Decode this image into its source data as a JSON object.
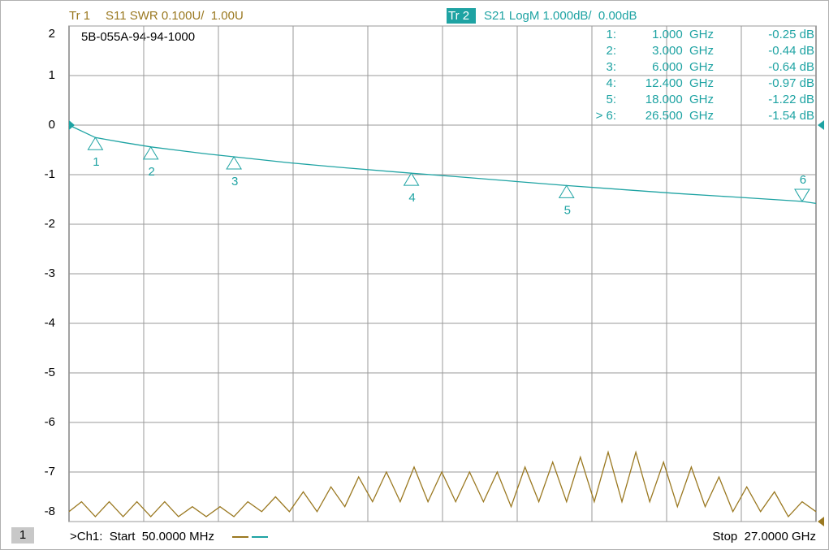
{
  "chart_data": {
    "type": "line",
    "annotation": "5B-055A-94-94-1000",
    "xlim": [
      0.05,
      27
    ],
    "ylim": [
      -8,
      2
    ],
    "yticks": [
      2,
      1,
      0,
      -1,
      -2,
      -3,
      -4,
      -5,
      -6,
      -7,
      -8
    ],
    "y2lim": [
      1,
      2
    ],
    "grid": true,
    "series": [
      {
        "label": "Tr 1",
        "name": "S11 SWR 0.100U/  1.00U",
        "color": "#9a7820",
        "axis": "y2",
        "ref": 1,
        "x": [
          0.05,
          0.5,
          1,
          1.5,
          2,
          2.5,
          3,
          3.5,
          4,
          4.5,
          5,
          5.5,
          6,
          6.5,
          7,
          7.5,
          8,
          8.5,
          9,
          9.5,
          10,
          10.5,
          11,
          11.5,
          12,
          12.5,
          13,
          13.5,
          14,
          14.5,
          15,
          15.5,
          16,
          16.5,
          17,
          17.5,
          18,
          18.5,
          19,
          19.5,
          20,
          20.5,
          21,
          21.5,
          22,
          22.5,
          23,
          23.5,
          24,
          24.5,
          25,
          25.5,
          26,
          26.5,
          27
        ],
        "values": [
          1.02,
          1.04,
          1.01,
          1.04,
          1.01,
          1.04,
          1.01,
          1.04,
          1.01,
          1.03,
          1.01,
          1.03,
          1.01,
          1.04,
          1.02,
          1.05,
          1.02,
          1.06,
          1.02,
          1.07,
          1.03,
          1.09,
          1.04,
          1.1,
          1.04,
          1.11,
          1.04,
          1.1,
          1.04,
          1.1,
          1.04,
          1.1,
          1.03,
          1.11,
          1.04,
          1.12,
          1.04,
          1.13,
          1.04,
          1.14,
          1.04,
          1.14,
          1.04,
          1.12,
          1.03,
          1.11,
          1.03,
          1.09,
          1.02,
          1.07,
          1.02,
          1.06,
          1.01,
          1.04,
          1.02
        ]
      },
      {
        "label": "Tr 2",
        "name": "S21 LogM 1.000dB/  0.00dB",
        "color": "#1ea3a3",
        "ref": 0,
        "x": [
          0.05,
          1,
          2,
          3,
          4,
          5,
          6,
          8,
          10,
          12.4,
          14,
          16,
          18,
          20,
          22,
          24,
          26.5,
          27
        ],
        "values": [
          0,
          -0.25,
          -0.35,
          -0.44,
          -0.51,
          -0.58,
          -0.64,
          -0.76,
          -0.86,
          -0.97,
          -1.04,
          -1.13,
          -1.22,
          -1.3,
          -1.38,
          -1.45,
          -1.54,
          -1.58
        ]
      }
    ],
    "markers": [
      {
        "id": "1",
        "label": "1:",
        "x": 1,
        "x_label": "1.000  GHz",
        "value": -0.25,
        "value_label": "-0.25 dB"
      },
      {
        "id": "2",
        "label": "2:",
        "x": 3,
        "x_label": "3.000  GHz",
        "value": -0.44,
        "value_label": "-0.44 dB"
      },
      {
        "id": "3",
        "label": "3:",
        "x": 6,
        "x_label": "6.000  GHz",
        "value": -0.64,
        "value_label": "-0.64 dB"
      },
      {
        "id": "4",
        "label": "4:",
        "x": 12.4,
        "x_label": "12.400  GHz",
        "value": -0.97,
        "value_label": "-0.97 dB"
      },
      {
        "id": "5",
        "label": "5:",
        "x": 18,
        "x_label": "18.000  GHz",
        "value": -1.22,
        "value_label": "-1.22 dB"
      },
      {
        "id": "6",
        "label": "> 6:",
        "x": 26.5,
        "x_label": "26.500  GHz",
        "value": -1.54,
        "value_label": "-1.54 dB",
        "active": true
      }
    ]
  },
  "footer": {
    "channel": "1",
    "start": ">Ch1:  Start  50.0000 MHz",
    "stop": "Stop  27.0000 GHz"
  }
}
